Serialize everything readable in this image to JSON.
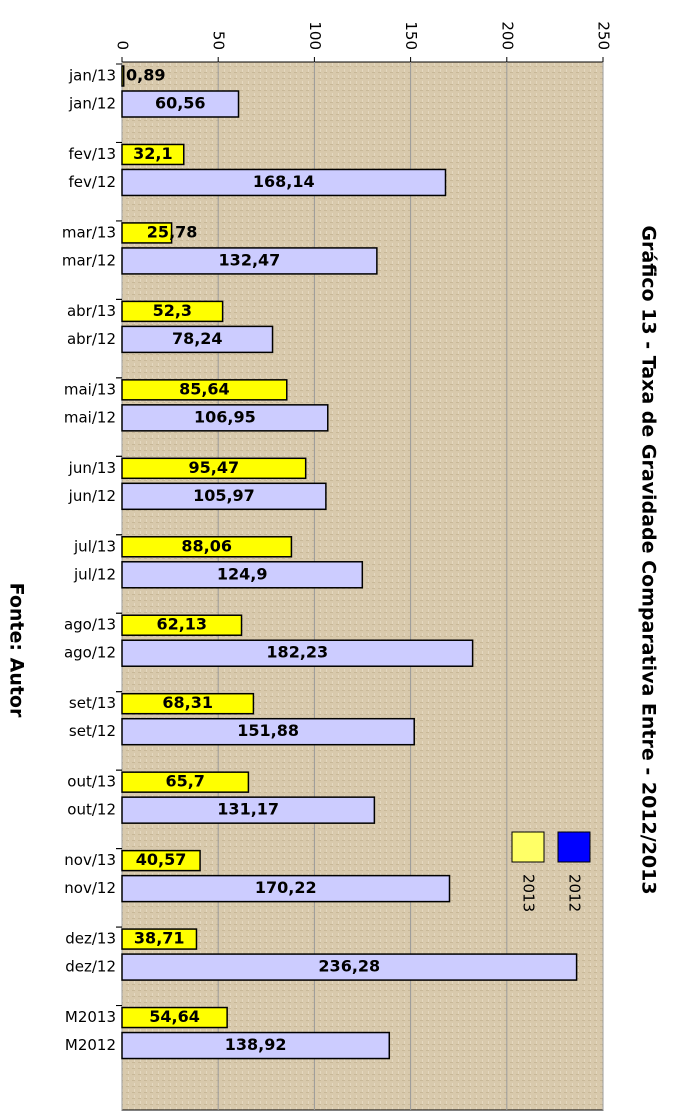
{
  "chart_data": {
    "type": "bar",
    "title": "Gráfico 13 - Taxa de Gravidade Comparativa Entre - 2012/2013",
    "source": "Fonte: Autor",
    "orientation": "horizontal",
    "series": [
      {
        "name": "2013",
        "color": "#ffff00",
        "legend_color": "#ffff66",
        "categories": [
          "jan/13",
          "fev/13",
          "mar/13",
          "abr/13",
          "mai/13",
          "jun/13",
          "jul/13",
          "ago/13",
          "set/13",
          "out/13",
          "nov/13",
          "dez/13",
          "M2013"
        ],
        "values": [
          0.89,
          32.1,
          25.78,
          52.3,
          85.64,
          95.47,
          88.06,
          62.13,
          68.31,
          65.7,
          40.57,
          38.71,
          54.64
        ],
        "value_labels": [
          "0,89",
          "32,1",
          "25,78",
          "52,3",
          "85,64",
          "95,47",
          "88,06",
          "62,13",
          "68,31",
          "65,7",
          "40,57",
          "38,71",
          "54,64"
        ]
      },
      {
        "name": "2012",
        "color": "#ccccff",
        "legend_color": "#0000ff",
        "categories": [
          "jan/12",
          "fev/12",
          "mar/12",
          "abr/12",
          "mai/12",
          "jun/12",
          "jul/12",
          "ago/12",
          "set/12",
          "out/12",
          "nov/12",
          "dez/12",
          "M2012"
        ],
        "values": [
          60.56,
          168.14,
          132.47,
          78.24,
          106.95,
          105.97,
          124.9,
          182.23,
          151.88,
          131.17,
          170.22,
          236.28,
          138.92
        ],
        "value_labels": [
          "60,56",
          "168,14",
          "132,47",
          "78,24",
          "106,95",
          "105,97",
          "124,9",
          "182,23",
          "151,88",
          "131,17",
          "170,22",
          "236,28",
          "138,92"
        ]
      }
    ],
    "xlim": [
      0,
      250
    ],
    "xticks": [
      0,
      50,
      100,
      150,
      200,
      250
    ],
    "grid": true
  }
}
